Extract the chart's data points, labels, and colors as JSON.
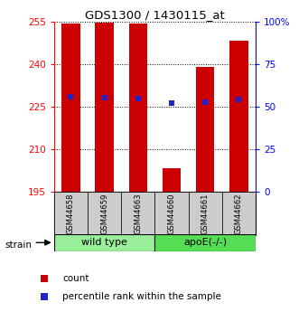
{
  "title": "GDS1300 / 1430115_at",
  "samples": [
    "GSM44658",
    "GSM44659",
    "GSM44663",
    "GSM44660",
    "GSM44661",
    "GSM44662"
  ],
  "count_values": [
    254.5,
    254.7,
    254.3,
    203.5,
    239.0,
    248.5
  ],
  "percentile_values": [
    228.5,
    228.3,
    227.8,
    226.3,
    226.8,
    227.5
  ],
  "y_min": 195,
  "y_max": 255,
  "y_ticks": [
    195,
    210,
    225,
    240,
    255
  ],
  "y2_ticks": [
    0,
    25,
    50,
    75,
    100
  ],
  "bar_color": "#cc0000",
  "percentile_color": "#2222cc",
  "wild_type_color": "#99ee99",
  "apoe_color": "#55dd55",
  "sample_box_color": "#cccccc",
  "wild_type_label": "wild type",
  "apoe_label": "apoE(-/-)",
  "legend_count": "count",
  "legend_percentile": "percentile rank within the sample",
  "strain_label": "strain"
}
